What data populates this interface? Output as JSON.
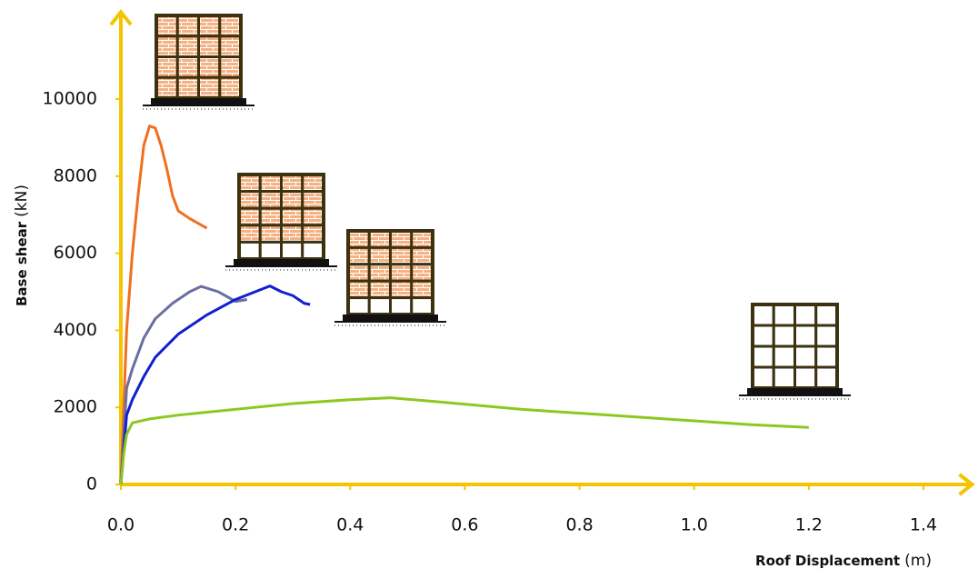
{
  "chart_data": {
    "type": "line",
    "x_label": "Roof Displacement",
    "x_unit": "(m)",
    "y_label": "Base shear",
    "y_unit": "(kN)",
    "xlim": [
      0,
      1.45
    ],
    "ylim": [
      0,
      12000
    ],
    "xticks": [
      {
        "value": 0,
        "label": "0.0"
      },
      0.2,
      0.4,
      0.6,
      0.8,
      {
        "value": 1,
        "label": "1.0"
      },
      1.2,
      1.4
    ],
    "yticks": [
      0,
      2000,
      4000,
      6000,
      8000,
      10000
    ],
    "axis_color": "#f5c400",
    "grid": false,
    "series": [
      {
        "color": "#f07020",
        "x": [
          0,
          0.005,
          0.01,
          0.02,
          0.03,
          0.04,
          0.05,
          0.06,
          0.07,
          0.08,
          0.09,
          0.1,
          0.12,
          0.15
        ],
        "values": [
          0,
          2000,
          4000,
          6000,
          7500,
          8800,
          9300,
          9250,
          8800,
          8200,
          7500,
          7100,
          6900,
          6650
        ]
      },
      {
        "color": "#6a6ea0",
        "x": [
          0,
          0.01,
          0.02,
          0.04,
          0.06,
          0.09,
          0.12,
          0.14,
          0.17,
          0.2,
          0.22
        ],
        "values": [
          0,
          2500,
          3000,
          3800,
          4300,
          4700,
          5000,
          5140,
          5000,
          4750,
          4800
        ]
      },
      {
        "color": "#1020d0",
        "x": [
          0,
          0.01,
          0.02,
          0.04,
          0.06,
          0.1,
          0.15,
          0.2,
          0.26,
          0.28,
          0.3,
          0.32,
          0.33
        ],
        "values": [
          0,
          1800,
          2200,
          2800,
          3300,
          3900,
          4400,
          4800,
          5150,
          5000,
          4900,
          4700,
          4670
        ]
      },
      {
        "color": "#8cc820",
        "x": [
          0,
          0.005,
          0.01,
          0.02,
          0.05,
          0.1,
          0.2,
          0.3,
          0.4,
          0.47,
          0.55,
          0.7,
          0.85,
          1.0,
          1.1,
          1.2
        ],
        "values": [
          0,
          800,
          1300,
          1600,
          1700,
          1800,
          1950,
          2100,
          2200,
          2250,
          2150,
          1950,
          1800,
          1650,
          1550,
          1480
        ]
      }
    ]
  }
}
